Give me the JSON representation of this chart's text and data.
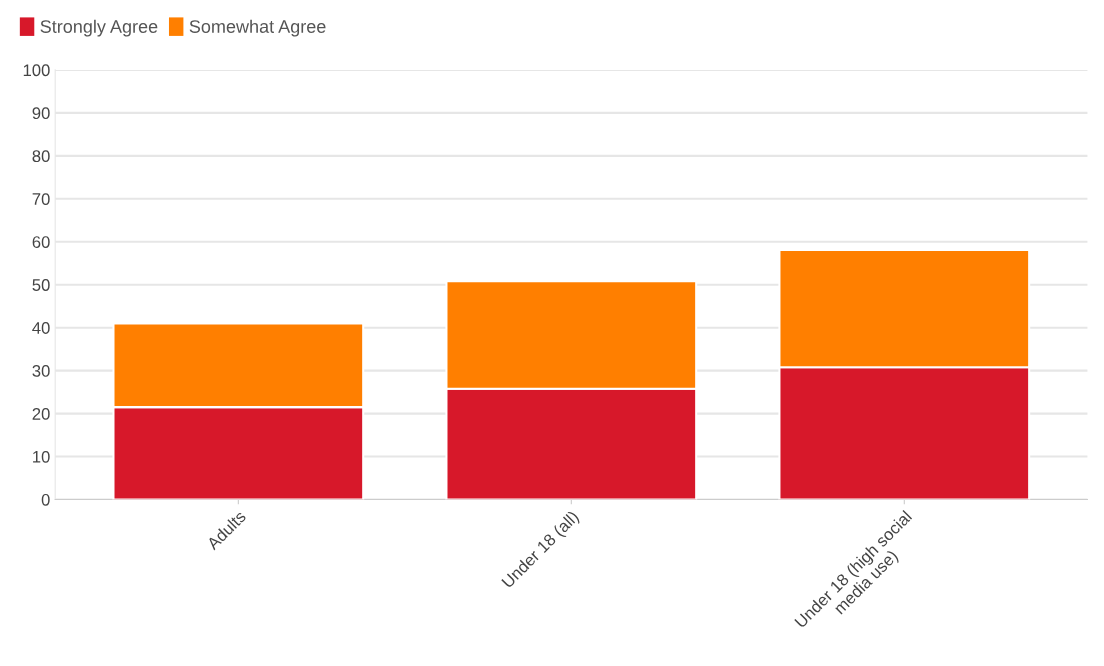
{
  "chart_data": {
    "type": "bar",
    "stacked": true,
    "categories": [
      "Adults",
      "Under 18 (all)",
      "Under 18 (high social media use)"
    ],
    "series": [
      {
        "name": "Strongly Agree",
        "color": "#d7182a",
        "values": [
          21.5,
          25.8,
          30.8
        ]
      },
      {
        "name": "Somewhat Agree",
        "color": "#ff7f00",
        "values": [
          19.5,
          25.0,
          27.3
        ]
      }
    ],
    "ylim": [
      0,
      100
    ],
    "yticks": [
      0,
      10,
      20,
      30,
      40,
      50,
      60,
      70,
      80,
      90,
      100
    ],
    "grid": "y",
    "legend": "top left"
  }
}
